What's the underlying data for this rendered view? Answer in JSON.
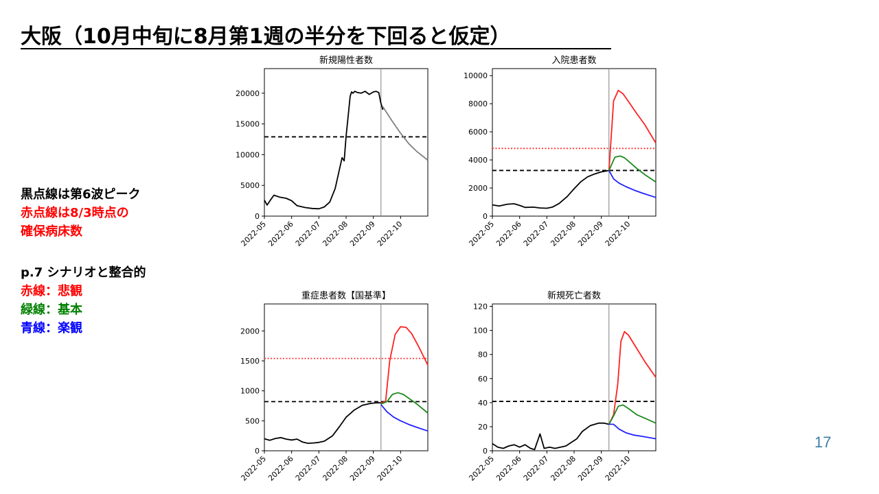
{
  "slide": {
    "title": "大阪（10月中旬に8月第1週の半分を下回ると仮定）",
    "page_number": "17"
  },
  "legend_text": {
    "notes": [
      {
        "text": "黒点線は第6波ピーク",
        "color": "#000000"
      },
      {
        "text": "赤点線は8/3時点の",
        "color": "#ff0000"
      },
      {
        "text": "確保病床数",
        "color": "#ff0000"
      }
    ],
    "scenarios": [
      {
        "text": "p.7 シナリオと整合的",
        "color": "#000000"
      },
      {
        "text": "赤線：悲観",
        "color": "#ff0000"
      },
      {
        "text": "緑線：基本",
        "color": "#008000"
      },
      {
        "text": "青線：楽観",
        "color": "#0000ff"
      }
    ]
  },
  "colors": {
    "actual": "#000000",
    "projection_gray": "#808080",
    "pessimistic": "#ff2020",
    "base": "#1a8a1a",
    "optimistic": "#2020ff",
    "threshold_black": "#000000",
    "threshold_red": "#ff3030"
  },
  "chart_data": [
    {
      "type": "line",
      "title": "新規陽性者数",
      "x_tick_labels": [
        "2022-05",
        "2022-06",
        "2022-07",
        "2022-08",
        "2022-09",
        "2022-10"
      ],
      "xlim": [
        0,
        6.0
      ],
      "ylim": [
        0,
        24000
      ],
      "yticks": [
        0,
        5000,
        10000,
        15000,
        20000
      ],
      "vline": 4.28,
      "hlines": [
        {
          "y": 12900,
          "style": "dashed",
          "color": "#000000"
        }
      ],
      "series": [
        {
          "style": "actual",
          "color": "#000000",
          "x": [
            0,
            0.1,
            0.22,
            0.35,
            0.55,
            0.8,
            1.0,
            1.2,
            1.5,
            1.75,
            2.0,
            2.2,
            2.4,
            2.6,
            2.75,
            2.85,
            2.93,
            3.0,
            3.08,
            3.15,
            3.2,
            3.25,
            3.32,
            3.42,
            3.55,
            3.7,
            3.85,
            4.0,
            4.1,
            4.2,
            4.27,
            4.35
          ],
          "y": [
            2600,
            1800,
            2600,
            3400,
            3100,
            2900,
            2500,
            1700,
            1400,
            1250,
            1200,
            1500,
            2300,
            4500,
            7500,
            9500,
            9000,
            13000,
            16500,
            19500,
            20200,
            20000,
            20300,
            20100,
            20000,
            20300,
            19800,
            20200,
            20300,
            20100,
            18500,
            17300
          ]
        },
        {
          "style": "projection",
          "color": "#808080",
          "x": [
            4.35,
            4.7,
            5.0,
            5.3,
            5.6,
            6.0
          ],
          "y": [
            17800,
            15400,
            13500,
            11800,
            10500,
            9100
          ]
        }
      ]
    },
    {
      "type": "line",
      "title": "入院患者数",
      "x_tick_labels": [
        "2022-05",
        "2022-06",
        "2022-07",
        "2022-08",
        "2022-09",
        "2022-10"
      ],
      "xlim": [
        0,
        6.0
      ],
      "ylim": [
        0,
        10500
      ],
      "yticks": [
        0,
        2000,
        4000,
        6000,
        8000,
        10000
      ],
      "vline": 4.28,
      "hlines": [
        {
          "y": 3250,
          "style": "dashed",
          "color": "#000000"
        },
        {
          "y": 4820,
          "style": "dotted",
          "color": "#ff3030"
        }
      ],
      "series": [
        {
          "style": "actual",
          "color": "#000000",
          "x": [
            0,
            0.25,
            0.55,
            0.8,
            1.0,
            1.2,
            1.5,
            1.75,
            2.0,
            2.2,
            2.45,
            2.75,
            3.0,
            3.25,
            3.5,
            3.75,
            4.0,
            4.28
          ],
          "y": [
            800,
            720,
            850,
            880,
            760,
            620,
            640,
            580,
            560,
            640,
            900,
            1400,
            1950,
            2450,
            2800,
            3000,
            3150,
            3250
          ]
        },
        {
          "style": "pessimistic",
          "color": "#ff2020",
          "x": [
            4.28,
            4.45,
            4.62,
            4.8,
            5.0,
            5.3,
            5.6,
            6.0
          ],
          "y": [
            3250,
            8200,
            8950,
            8700,
            8150,
            7300,
            6500,
            5200
          ]
        },
        {
          "style": "base",
          "color": "#1a8a1a",
          "x": [
            4.28,
            4.5,
            4.7,
            4.85,
            5.0,
            5.3,
            5.6,
            6.0
          ],
          "y": [
            3250,
            4200,
            4280,
            4150,
            3900,
            3400,
            2950,
            2430
          ]
        },
        {
          "style": "optimistic",
          "color": "#2020ff",
          "x": [
            4.28,
            4.45,
            4.65,
            4.9,
            5.2,
            5.5,
            6.0
          ],
          "y": [
            3250,
            2650,
            2350,
            2100,
            1850,
            1640,
            1330
          ]
        }
      ]
    },
    {
      "type": "line",
      "title": "重症患者数【国基準】",
      "x_tick_labels": [
        "2022-05",
        "2022-06",
        "2022-07",
        "2022-08",
        "2022-09",
        "2022-10"
      ],
      "xlim": [
        0,
        6.0
      ],
      "ylim": [
        0,
        2450
      ],
      "yticks": [
        0,
        500,
        1000,
        1500,
        2000
      ],
      "vline": 4.28,
      "hlines": [
        {
          "y": 820,
          "style": "dashed",
          "color": "#000000"
        },
        {
          "y": 1540,
          "style": "dotted",
          "color": "#ff3030"
        }
      ],
      "series": [
        {
          "style": "actual",
          "color": "#000000",
          "x": [
            0,
            0.2,
            0.4,
            0.6,
            0.8,
            1.0,
            1.2,
            1.4,
            1.6,
            1.8,
            2.0,
            2.2,
            2.5,
            2.75,
            3.0,
            3.3,
            3.6,
            3.9,
            4.1,
            4.28
          ],
          "y": [
            200,
            175,
            205,
            220,
            195,
            180,
            195,
            145,
            125,
            130,
            140,
            160,
            250,
            400,
            560,
            680,
            760,
            790,
            800,
            800
          ]
        },
        {
          "style": "pessimistic",
          "color": "#ff2020",
          "x": [
            4.28,
            4.45,
            4.6,
            4.8,
            5.0,
            5.2,
            5.4,
            5.65,
            6.0
          ],
          "y": [
            800,
            820,
            1500,
            1940,
            2070,
            2060,
            1960,
            1750,
            1430
          ]
        },
        {
          "style": "base",
          "color": "#1a8a1a",
          "x": [
            4.28,
            4.5,
            4.7,
            4.9,
            5.1,
            5.35,
            5.6,
            6.0
          ],
          "y": [
            780,
            820,
            940,
            970,
            940,
            860,
            780,
            630
          ]
        },
        {
          "style": "optimistic",
          "color": "#2020ff",
          "x": [
            4.28,
            4.5,
            4.75,
            5.0,
            5.3,
            5.6,
            6.0
          ],
          "y": [
            770,
            650,
            560,
            500,
            440,
            390,
            330
          ]
        }
      ]
    },
    {
      "type": "line",
      "title": "新規死亡者数",
      "x_tick_labels": [
        "2022-05",
        "2022-06",
        "2022-07",
        "2022-08",
        "2022-09",
        "2022-10"
      ],
      "xlim": [
        0,
        6.0
      ],
      "ylim": [
        0,
        122
      ],
      "yticks": [
        0,
        20,
        40,
        60,
        80,
        100,
        120
      ],
      "vline": 4.28,
      "hlines": [
        {
          "y": 41,
          "style": "dashed",
          "color": "#000000"
        }
      ],
      "series": [
        {
          "style": "actual",
          "color": "#000000",
          "x": [
            0,
            0.2,
            0.4,
            0.6,
            0.8,
            1.0,
            1.2,
            1.4,
            1.55,
            1.75,
            1.9,
            2.1,
            2.3,
            2.5,
            2.7,
            2.9,
            3.1,
            3.3,
            3.6,
            3.9,
            4.1,
            4.28
          ],
          "y": [
            6,
            3,
            2,
            4,
            5,
            3,
            5,
            2,
            1,
            14,
            2,
            3,
            2,
            3,
            4,
            7,
            10,
            16,
            21,
            23,
            23,
            22
          ]
        },
        {
          "style": "pessimistic",
          "color": "#ff2020",
          "x": [
            4.28,
            4.45,
            4.6,
            4.72,
            4.85,
            5.0,
            5.3,
            5.6,
            6.0
          ],
          "y": [
            22,
            30,
            55,
            91,
            99,
            96,
            85,
            74,
            61
          ]
        },
        {
          "style": "base",
          "color": "#1a8a1a",
          "x": [
            4.28,
            4.45,
            4.62,
            4.8,
            5.0,
            5.3,
            5.6,
            6.0
          ],
          "y": [
            22,
            29,
            37,
            38,
            35,
            30,
            27,
            23
          ]
        },
        {
          "style": "optimistic",
          "color": "#2020ff",
          "x": [
            4.28,
            4.45,
            4.65,
            4.9,
            5.2,
            5.5,
            6.0
          ],
          "y": [
            22,
            22,
            18,
            15,
            13,
            12,
            10
          ]
        }
      ]
    }
  ]
}
